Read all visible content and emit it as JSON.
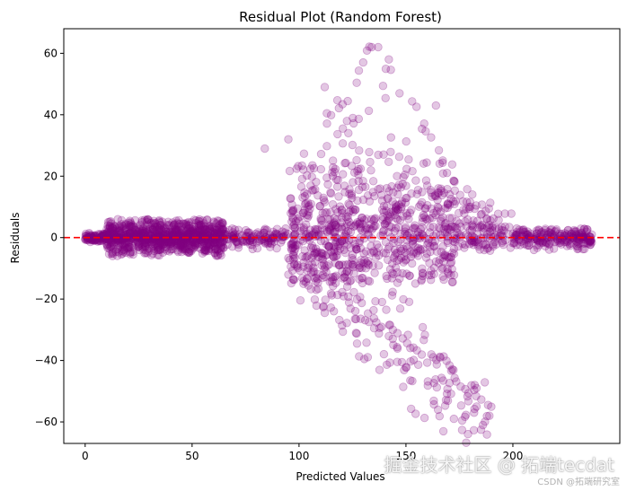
{
  "chart_data": {
    "type": "scatter",
    "title": "Residual Plot (Random Forest)",
    "xlabel": "Predicted Values",
    "ylabel": "Residuals",
    "xlim": [
      -10,
      250
    ],
    "ylim": [
      -67,
      68
    ],
    "xticks": [
      0,
      50,
      100,
      150,
      200
    ],
    "yticks": [
      -60,
      -40,
      -20,
      0,
      20,
      40,
      60
    ],
    "grid": false,
    "point_color": "#800080",
    "point_alpha": 0.22,
    "reference_line": {
      "y": 0,
      "color": "#ff0000",
      "style": "dashed"
    },
    "clusters": [
      {
        "x_range": [
          0,
          10
        ],
        "residual_spread": [
          -1.5,
          1.5
        ],
        "count": 90
      },
      {
        "x_range": [
          10,
          65
        ],
        "residual_spread": [
          -6,
          6
        ],
        "count": 900
      },
      {
        "x_range": [
          65,
          95
        ],
        "residual_spread": [
          -4,
          3
        ],
        "count": 120
      },
      {
        "x_range": [
          95,
          175
        ],
        "residual_spread": [
          -15,
          25
        ],
        "count": 650
      },
      {
        "x_range": [
          175,
          200
        ],
        "residual_spread": [
          -5,
          8
        ],
        "count": 90
      },
      {
        "x_range": [
          200,
          237
        ],
        "residual_spread": [
          -4,
          3
        ],
        "count": 220
      }
    ],
    "upper_arm": {
      "x_range": [
        100,
        190
      ],
      "peak_x": 135,
      "peak_y": 62,
      "count": 160
    },
    "lower_arm": {
      "x_range": [
        95,
        190
      ],
      "start_y": -5,
      "end_y": -61,
      "count": 200
    },
    "notable_points": [
      {
        "x": 134,
        "y": 62
      },
      {
        "x": 137,
        "y": 62
      },
      {
        "x": 142,
        "y": 58
      },
      {
        "x": 130,
        "y": 57
      },
      {
        "x": 112,
        "y": 49
      },
      {
        "x": 164,
        "y": 43
      },
      {
        "x": 147,
        "y": 47
      },
      {
        "x": 186,
        "y": -61
      },
      {
        "x": 189,
        "y": -58
      },
      {
        "x": 183,
        "y": -55
      },
      {
        "x": 183,
        "y": -49
      },
      {
        "x": 165,
        "y": -56
      },
      {
        "x": 84,
        "y": 29
      },
      {
        "x": 95,
        "y": 32
      }
    ]
  },
  "watermark": {
    "main": "掘金技术社区 @ 拓端tecdat",
    "sub": "CSDN @拓端研究室"
  }
}
